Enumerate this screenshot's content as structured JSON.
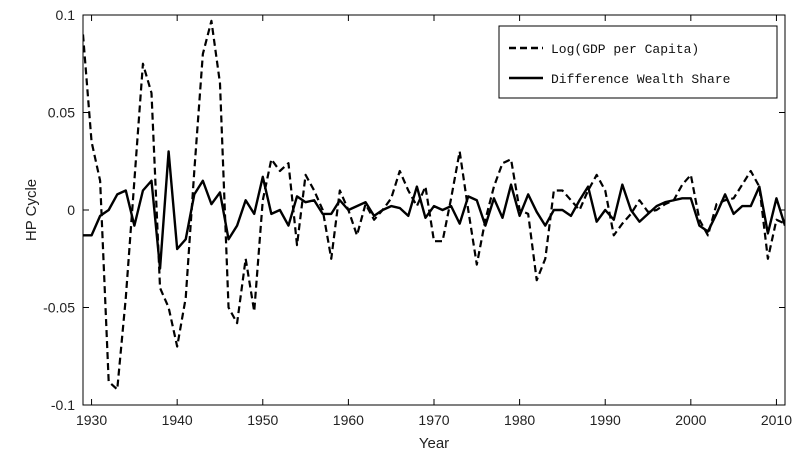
{
  "chart_data": {
    "type": "line",
    "xlabel": "Year",
    "ylabel": "HP Cycle",
    "xlim": [
      1929,
      2011
    ],
    "ylim": [
      -0.1,
      0.1
    ],
    "x_ticks": [
      1930,
      1940,
      1950,
      1960,
      1970,
      1980,
      1990,
      2000,
      2010
    ],
    "x_tick_labels": [
      "1930",
      "1940",
      "1950",
      "1960",
      "1970",
      "1980",
      "1990",
      "2000",
      "2010"
    ],
    "y_ticks": [
      -0.1,
      -0.05,
      0,
      0.05,
      0.1
    ],
    "y_tick_labels": [
      "-0.1",
      "-0.05",
      "0",
      "0.05",
      "0.1"
    ],
    "grid": false,
    "legend_position": "top-right",
    "series": [
      {
        "name": "Log(GDP per Capita)",
        "style": "dashed",
        "color": "#000000",
        "x": [
          1929,
          1930,
          1931,
          1932,
          1933,
          1934,
          1935,
          1936,
          1937,
          1938,
          1939,
          1940,
          1941,
          1942,
          1943,
          1944,
          1945,
          1946,
          1947,
          1948,
          1949,
          1950,
          1951,
          1952,
          1953,
          1954,
          1955,
          1956,
          1957,
          1958,
          1959,
          1960,
          1961,
          1962,
          1963,
          1964,
          1965,
          1966,
          1967,
          1968,
          1969,
          1970,
          1971,
          1972,
          1973,
          1974,
          1975,
          1976,
          1977,
          1978,
          1979,
          1980,
          1981,
          1982,
          1983,
          1984,
          1985,
          1986,
          1987,
          1988,
          1989,
          1990,
          1991,
          1992,
          1993,
          1994,
          1995,
          1996,
          1997,
          1998,
          1999,
          2000,
          2001,
          2002,
          2003,
          2004,
          2005,
          2006,
          2007,
          2008,
          2009,
          2010,
          2011
        ],
        "values": [
          0.09,
          0.035,
          0.015,
          -0.088,
          -0.092,
          -0.045,
          0.015,
          0.075,
          0.06,
          -0.04,
          -0.05,
          -0.07,
          -0.045,
          0.02,
          0.08,
          0.097,
          0.065,
          -0.05,
          -0.058,
          -0.025,
          -0.052,
          0.005,
          0.026,
          0.02,
          0.024,
          -0.018,
          0.018,
          0.01,
          0.0,
          -0.025,
          0.01,
          0.0,
          -0.013,
          0.003,
          -0.005,
          0.0,
          0.006,
          0.02,
          0.01,
          0.002,
          0.012,
          -0.016,
          -0.016,
          0.006,
          0.03,
          0.0,
          -0.028,
          -0.005,
          0.012,
          0.024,
          0.026,
          0.0,
          -0.002,
          -0.036,
          -0.025,
          0.01,
          0.01,
          0.005,
          0.0,
          0.01,
          0.018,
          0.01,
          -0.013,
          -0.007,
          -0.002,
          0.005,
          -0.001,
          0.0,
          0.003,
          0.005,
          0.013,
          0.018,
          -0.005,
          -0.013,
          0.003,
          0.005,
          0.006,
          0.013,
          0.02,
          0.012,
          -0.025,
          -0.005,
          -0.007
        ]
      },
      {
        "name": "Difference Wealth Share",
        "style": "solid",
        "color": "#000000",
        "x": [
          1929,
          1930,
          1931,
          1932,
          1933,
          1934,
          1935,
          1936,
          1937,
          1938,
          1939,
          1940,
          1941,
          1942,
          1943,
          1944,
          1945,
          1946,
          1947,
          1948,
          1949,
          1950,
          1951,
          1952,
          1953,
          1954,
          1955,
          1956,
          1957,
          1958,
          1959,
          1960,
          1961,
          1962,
          1963,
          1964,
          1965,
          1966,
          1967,
          1968,
          1969,
          1970,
          1971,
          1972,
          1973,
          1974,
          1975,
          1976,
          1977,
          1978,
          1979,
          1980,
          1981,
          1982,
          1983,
          1984,
          1985,
          1986,
          1987,
          1988,
          1989,
          1990,
          1991,
          1992,
          1993,
          1994,
          1995,
          1996,
          1997,
          1998,
          1999,
          2000,
          2001,
          2002,
          2003,
          2004,
          2005,
          2006,
          2007,
          2008,
          2009,
          2010,
          2011
        ],
        "values": [
          -0.013,
          -0.013,
          -0.003,
          0.0,
          0.008,
          0.01,
          -0.008,
          0.01,
          0.015,
          -0.03,
          0.03,
          -0.02,
          -0.015,
          0.008,
          0.015,
          0.003,
          0.009,
          -0.015,
          -0.008,
          0.005,
          -0.002,
          0.017,
          -0.002,
          0.0,
          -0.008,
          0.007,
          0.004,
          0.005,
          -0.002,
          -0.002,
          0.005,
          0.0,
          0.002,
          0.004,
          -0.003,
          0.0,
          0.002,
          0.001,
          -0.003,
          0.012,
          -0.004,
          0.002,
          0.0,
          0.002,
          -0.007,
          0.007,
          0.005,
          -0.008,
          0.006,
          -0.004,
          0.013,
          -0.003,
          0.008,
          -0.001,
          -0.008,
          0.0,
          0.0,
          -0.003,
          0.005,
          0.012,
          -0.006,
          0.0,
          -0.005,
          0.013,
          0.0,
          -0.006,
          -0.002,
          0.002,
          0.004,
          0.005,
          0.006,
          0.006,
          -0.008,
          -0.011,
          -0.002,
          0.008,
          -0.002,
          0.002,
          0.002,
          0.012,
          -0.012,
          0.006,
          -0.008
        ]
      }
    ]
  }
}
